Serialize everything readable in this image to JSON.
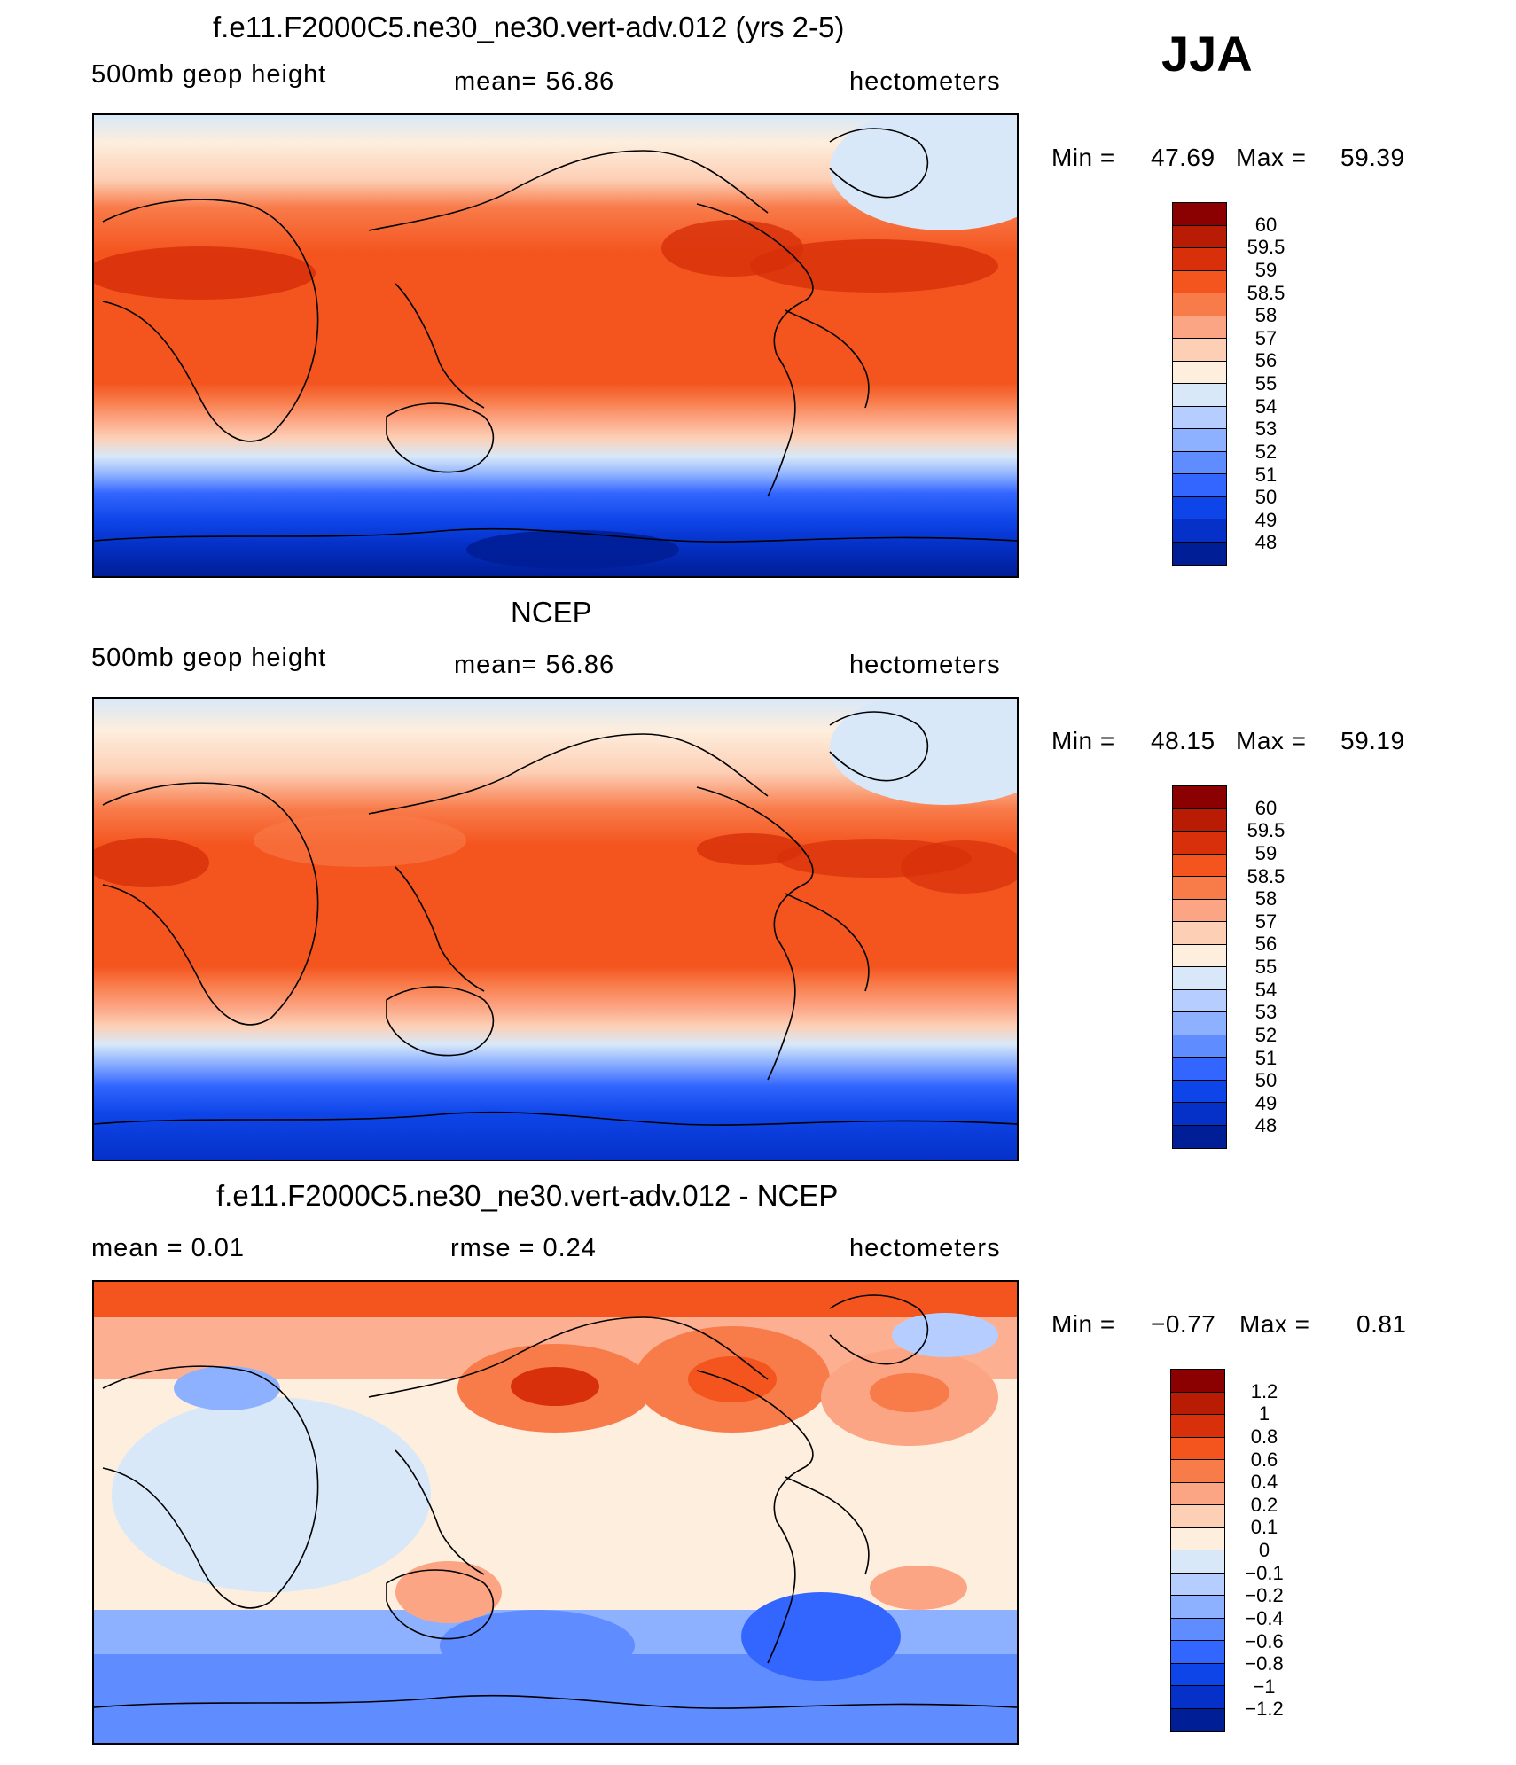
{
  "season": "JJA",
  "panels": [
    {
      "id": "model",
      "title": "f.e11.F2000C5.ne30_ne30.vert-adv.012 (yrs 2-5)",
      "left_label": "500mb  geop  height",
      "center_label": "mean=   56.86",
      "right_label": "hectometers",
      "min_label": "Min  =",
      "min_value": "47.69",
      "max_label": "Max  =",
      "max_value": "59.39",
      "colorbar_colors": [
        "#8b0000",
        "#b81c05",
        "#d7300a",
        "#f4541e",
        "#f87b4a",
        "#fca584",
        "#fdcfb5",
        "#fdeedd",
        "#d8e8f8",
        "#b5ceff",
        "#8eb1ff",
        "#5f8cff",
        "#3366ff",
        "#0e45e8",
        "#0531c8",
        "#001e96"
      ],
      "colorbar_labels": [
        "60",
        "59.5",
        "59",
        "58.5",
        "58",
        "57",
        "56",
        "55",
        "54",
        "53",
        "52",
        "51",
        "50",
        "49",
        "48"
      ]
    },
    {
      "id": "obs",
      "title": "NCEP",
      "left_label": "500mb  geop  height",
      "center_label": "mean=   56.86",
      "right_label": "hectometers",
      "min_label": "Min  =",
      "min_value": "48.15",
      "max_label": "Max  =",
      "max_value": "59.19",
      "colorbar_colors": [
        "#8b0000",
        "#b81c05",
        "#d7300a",
        "#f4541e",
        "#f87b4a",
        "#fca584",
        "#fdcfb5",
        "#fdeedd",
        "#d8e8f8",
        "#b5ceff",
        "#8eb1ff",
        "#5f8cff",
        "#3366ff",
        "#0e45e8",
        "#0531c8",
        "#001e96"
      ],
      "colorbar_labels": [
        "60",
        "59.5",
        "59",
        "58.5",
        "58",
        "57",
        "56",
        "55",
        "54",
        "53",
        "52",
        "51",
        "50",
        "49",
        "48"
      ]
    },
    {
      "id": "diff",
      "title": "f.e11.F2000C5.ne30_ne30.vert-adv.012 - NCEP",
      "left_label": "mean  =     0.01",
      "center_label": "rmse  =     0.24",
      "right_label": "hectometers",
      "min_label": "Min  =",
      "min_value": "−0.77",
      "max_label": "Max  =",
      "max_value": "0.81",
      "colorbar_colors": [
        "#8b0000",
        "#b81c05",
        "#d7300a",
        "#f4541e",
        "#f87b4a",
        "#fca584",
        "#fdcfb5",
        "#fdeedd",
        "#d8e8f8",
        "#b5ceff",
        "#8eb1ff",
        "#5f8cff",
        "#3366ff",
        "#0e45e8",
        "#0531c8",
        "#001e96"
      ],
      "colorbar_labels": [
        "1.2",
        "1",
        "0.8",
        "0.6",
        "0.4",
        "0.2",
        "0.1",
        "0",
        "−0.1",
        "−0.2",
        "−0.4",
        "−0.6",
        "−0.8",
        "−1",
        "−1.2"
      ]
    }
  ]
}
